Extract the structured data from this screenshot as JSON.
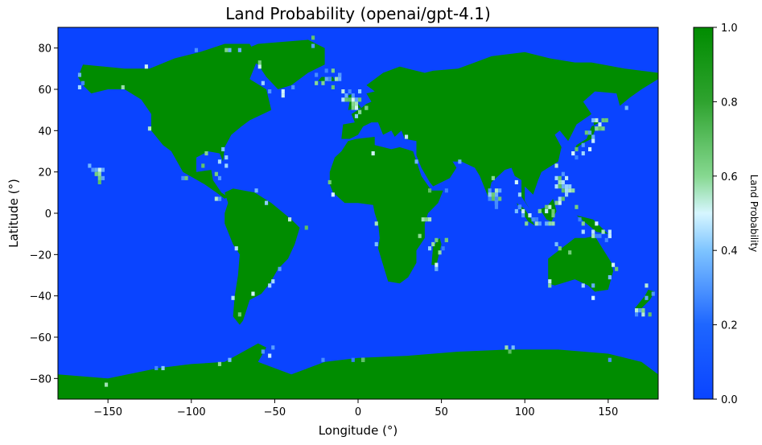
{
  "chart_data": {
    "type": "heatmap",
    "title": "Land Probability (openai/gpt-4.1)",
    "xlabel": "Longitude (°)",
    "ylabel": "Latitude (°)",
    "xlim": [
      -180,
      180
    ],
    "ylim": [
      -90,
      90
    ],
    "xticks": [
      -150,
      -100,
      -50,
      0,
      50,
      100,
      150
    ],
    "yticks": [
      -80,
      -60,
      -40,
      -20,
      0,
      20,
      40,
      60,
      80
    ],
    "grid": false,
    "colorbar": {
      "label": "Land Probability",
      "range": [
        0,
        1
      ],
      "ticks": [
        0.0,
        0.2,
        0.4,
        0.6,
        0.8,
        1.0
      ],
      "tick_labels": [
        "0.0",
        "0.2",
        "0.4",
        "0.6",
        "0.8",
        "1.0"
      ],
      "colormap_stops": [
        {
          "value": 0.0,
          "color": "#0a44ff"
        },
        {
          "value": 0.2,
          "color": "#1e66ff"
        },
        {
          "value": 0.4,
          "color": "#7ec4ff"
        },
        {
          "value": 0.5,
          "color": "#d6f6ff"
        },
        {
          "value": 0.6,
          "color": "#86d890"
        },
        {
          "value": 0.8,
          "color": "#2fa32f"
        },
        {
          "value": 1.0,
          "color": "#008c00"
        }
      ]
    },
    "land_regions": [
      {
        "name": "North America",
        "points": [
          [
            -168,
            66
          ],
          [
            -165,
            72
          ],
          [
            -140,
            70
          ],
          [
            -125,
            70
          ],
          [
            -110,
            75
          ],
          [
            -95,
            78
          ],
          [
            -80,
            82
          ],
          [
            -65,
            82
          ],
          [
            -60,
            75
          ],
          [
            -65,
            65
          ],
          [
            -55,
            60
          ],
          [
            -52,
            50
          ],
          [
            -65,
            45
          ],
          [
            -70,
            42
          ],
          [
            -76,
            38
          ],
          [
            -80,
            32
          ],
          [
            -81,
            25
          ],
          [
            -83,
            29
          ],
          [
            -90,
            30
          ],
          [
            -97,
            27
          ],
          [
            -97,
            20
          ],
          [
            -88,
            21
          ],
          [
            -87,
            16
          ],
          [
            -82,
            10
          ],
          [
            -78,
            8
          ],
          [
            -80,
            7
          ],
          [
            -85,
            10
          ],
          [
            -92,
            14
          ],
          [
            -105,
            20
          ],
          [
            -112,
            30
          ],
          [
            -117,
            33
          ],
          [
            -124,
            40
          ],
          [
            -124,
            48
          ],
          [
            -130,
            55
          ],
          [
            -140,
            60
          ],
          [
            -150,
            60
          ],
          [
            -160,
            58
          ],
          [
            -165,
            62
          ]
        ]
      },
      {
        "name": "Greenland",
        "points": [
          [
            -72,
            78
          ],
          [
            -60,
            82
          ],
          [
            -30,
            84
          ],
          [
            -20,
            80
          ],
          [
            -20,
            72
          ],
          [
            -30,
            68
          ],
          [
            -40,
            62
          ],
          [
            -48,
            60
          ],
          [
            -55,
            66
          ],
          [
            -60,
            72
          ]
        ]
      },
      {
        "name": "South America",
        "points": [
          [
            -80,
            10
          ],
          [
            -75,
            12
          ],
          [
            -62,
            10
          ],
          [
            -52,
            5
          ],
          [
            -40,
            -3
          ],
          [
            -35,
            -7
          ],
          [
            -38,
            -15
          ],
          [
            -42,
            -22
          ],
          [
            -48,
            -27
          ],
          [
            -53,
            -34
          ],
          [
            -58,
            -39
          ],
          [
            -65,
            -42
          ],
          [
            -67,
            -47
          ],
          [
            -69,
            -52
          ],
          [
            -71,
            -54
          ],
          [
            -75,
            -50
          ],
          [
            -74,
            -40
          ],
          [
            -72,
            -30
          ],
          [
            -71,
            -20
          ],
          [
            -75,
            -15
          ],
          [
            -80,
            -5
          ],
          [
            -80,
            0
          ],
          [
            -78,
            5
          ]
        ]
      },
      {
        "name": "Africa",
        "points": [
          [
            -17,
            20
          ],
          [
            -17,
            14
          ],
          [
            -15,
            10
          ],
          [
            -8,
            5
          ],
          [
            0,
            5
          ],
          [
            9,
            4
          ],
          [
            10,
            0
          ],
          [
            12,
            -5
          ],
          [
            13,
            -12
          ],
          [
            12,
            -17
          ],
          [
            15,
            -25
          ],
          [
            18,
            -33
          ],
          [
            25,
            -34
          ],
          [
            30,
            -31
          ],
          [
            35,
            -24
          ],
          [
            35,
            -18
          ],
          [
            40,
            -12
          ],
          [
            40,
            -5
          ],
          [
            42,
            0
          ],
          [
            48,
            5
          ],
          [
            51,
            11
          ],
          [
            44,
            11
          ],
          [
            38,
            18
          ],
          [
            33,
            30
          ],
          [
            25,
            32
          ],
          [
            20,
            31
          ],
          [
            10,
            33
          ],
          [
            10,
            37
          ],
          [
            -1,
            36
          ],
          [
            -6,
            35
          ],
          [
            -10,
            30
          ],
          [
            -14,
            27
          ]
        ]
      },
      {
        "name": "Eurasia",
        "points": [
          [
            -10,
            36
          ],
          [
            -9,
            43
          ],
          [
            -2,
            44
          ],
          [
            -4,
            48
          ],
          [
            2,
            51
          ],
          [
            5,
            53
          ],
          [
            8,
            54
          ],
          [
            5,
            58
          ],
          [
            10,
            59
          ],
          [
            5,
            62
          ],
          [
            15,
            68
          ],
          [
            25,
            71
          ],
          [
            40,
            68
          ],
          [
            45,
            69
          ],
          [
            60,
            70
          ],
          [
            70,
            73
          ],
          [
            80,
            76
          ],
          [
            100,
            78
          ],
          [
            115,
            75
          ],
          [
            130,
            73
          ],
          [
            140,
            73
          ],
          [
            160,
            70
          ],
          [
            180,
            68
          ],
          [
            180,
            65
          ],
          [
            170,
            60
          ],
          [
            163,
            56
          ],
          [
            157,
            52
          ],
          [
            155,
            58
          ],
          [
            142,
            59
          ],
          [
            135,
            54
          ],
          [
            140,
            48
          ],
          [
            131,
            43
          ],
          [
            128,
            38
          ],
          [
            126,
            35
          ],
          [
            121,
            40
          ],
          [
            118,
            38
          ],
          [
            122,
            32
          ],
          [
            120,
            25
          ],
          [
            110,
            20
          ],
          [
            108,
            16
          ],
          [
            105,
            9
          ],
          [
            100,
            13
          ],
          [
            100,
            6
          ],
          [
            103,
            2
          ],
          [
            98,
            8
          ],
          [
            98,
            16
          ],
          [
            94,
            18
          ],
          [
            92,
            22
          ],
          [
            88,
            21
          ],
          [
            80,
            15
          ],
          [
            78,
            8
          ],
          [
            73,
            18
          ],
          [
            70,
            22
          ],
          [
            62,
            25
          ],
          [
            57,
            25
          ],
          [
            52,
            27
          ],
          [
            50,
            30
          ],
          [
            56,
            26
          ],
          [
            59,
            22
          ],
          [
            55,
            17
          ],
          [
            45,
            13
          ],
          [
            43,
            15
          ],
          [
            38,
            22
          ],
          [
            35,
            28
          ],
          [
            35,
            35
          ],
          [
            28,
            36
          ],
          [
            26,
            40
          ],
          [
            22,
            37
          ],
          [
            20,
            40
          ],
          [
            15,
            38
          ],
          [
            12,
            44
          ],
          [
            8,
            44
          ],
          [
            3,
            42
          ],
          [
            0,
            38
          ],
          [
            -5,
            36
          ]
        ]
      },
      {
        "name": "Australia",
        "points": [
          [
            114,
            -22
          ],
          [
            114,
            -34
          ],
          [
            118,
            -35
          ],
          [
            130,
            -32
          ],
          [
            138,
            -35
          ],
          [
            142,
            -38
          ],
          [
            150,
            -37
          ],
          [
            153,
            -28
          ],
          [
            152,
            -24
          ],
          [
            145,
            -15
          ],
          [
            142,
            -11
          ],
          [
            136,
            -12
          ],
          [
            130,
            -12
          ],
          [
            122,
            -17
          ]
        ]
      },
      {
        "name": "Antarctica",
        "points": [
          [
            -180,
            -78
          ],
          [
            -150,
            -80
          ],
          [
            -120,
            -75
          ],
          [
            -100,
            -73
          ],
          [
            -80,
            -72
          ],
          [
            -60,
            -63
          ],
          [
            -55,
            -65
          ],
          [
            -60,
            -72
          ],
          [
            -40,
            -78
          ],
          [
            -20,
            -72
          ],
          [
            0,
            -70
          ],
          [
            30,
            -69
          ],
          [
            60,
            -67
          ],
          [
            90,
            -66
          ],
          [
            120,
            -66
          ],
          [
            150,
            -68
          ],
          [
            170,
            -72
          ],
          [
            180,
            -78
          ],
          [
            180,
            -90
          ],
          [
            -180,
            -90
          ]
        ]
      },
      {
        "name": "Borneo",
        "points": [
          [
            109,
            2
          ],
          [
            113,
            -3
          ],
          [
            116,
            -4
          ],
          [
            119,
            1
          ],
          [
            117,
            7
          ],
          [
            113,
            3
          ]
        ]
      },
      {
        "name": "Sumatra",
        "points": [
          [
            95,
            5
          ],
          [
            100,
            2
          ],
          [
            104,
            -3
          ],
          [
            106,
            -6
          ],
          [
            102,
            -4
          ],
          [
            97,
            2
          ]
        ]
      },
      {
        "name": "New Guinea",
        "points": [
          [
            131,
            -1
          ],
          [
            141,
            -3
          ],
          [
            150,
            -10
          ],
          [
            143,
            -9
          ],
          [
            137,
            -5
          ]
        ]
      },
      {
        "name": "Madagascar",
        "points": [
          [
            44,
            -25
          ],
          [
            47,
            -25
          ],
          [
            50,
            -15
          ],
          [
            49,
            -12
          ],
          [
            45,
            -16
          ]
        ]
      },
      {
        "name": "Japan",
        "points": [
          [
            130,
            31
          ],
          [
            135,
            34
          ],
          [
            140,
            36
          ],
          [
            142,
            40
          ],
          [
            141,
            45
          ],
          [
            145,
            44
          ],
          [
            140,
            42
          ],
          [
            137,
            36
          ],
          [
            131,
            33
          ]
        ]
      },
      {
        "name": "Great Britain",
        "points": [
          [
            -6,
            50
          ],
          [
            2,
            51
          ],
          [
            0,
            53
          ],
          [
            -3,
            58
          ],
          [
            -6,
            57
          ],
          [
            -5,
            54
          ]
        ]
      },
      {
        "name": "Iceland",
        "points": [
          [
            -24,
            64
          ],
          [
            -22,
            66
          ],
          [
            -15,
            66
          ],
          [
            -14,
            64
          ]
        ]
      },
      {
        "name": "New Zealand",
        "points": [
          [
            166,
            -46
          ],
          [
            172,
            -40
          ],
          [
            174,
            -37
          ],
          [
            178,
            -38
          ],
          [
            175,
            -42
          ],
          [
            170,
            -46
          ]
        ]
      },
      {
        "name": "Philippines",
        "points": [
          [
            120,
            18
          ],
          [
            122,
            14
          ],
          [
            126,
            7
          ],
          [
            124,
            10
          ],
          [
            120,
            14
          ]
        ]
      },
      {
        "name": "Sri Lanka",
        "points": [
          [
            80,
            7
          ],
          [
            82,
            7
          ],
          [
            81,
            9
          ],
          [
            80,
            10
          ]
        ]
      },
      {
        "name": "Hawaii",
        "points": [
          [
            -160,
            22
          ],
          [
            -155,
            19
          ],
          [
            -155,
            20
          ],
          [
            -158,
            22
          ]
        ]
      }
    ]
  }
}
